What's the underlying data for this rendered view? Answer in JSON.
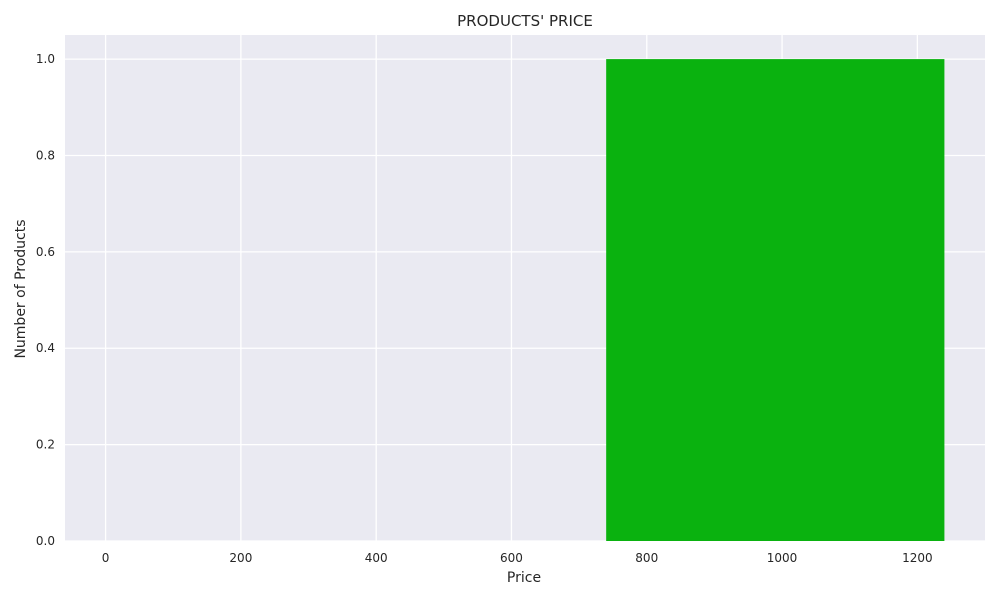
{
  "chart_data": {
    "type": "bar",
    "title": "PRODUCTS' PRICE",
    "xlabel": "Price",
    "ylabel": "Number of Products",
    "bars": [
      {
        "x_start": 740,
        "x_end": 1240,
        "value": 1.0
      }
    ],
    "xlim": [
      -60,
      1300
    ],
    "ylim": [
      0,
      1.05
    ],
    "xticks": [
      0,
      200,
      400,
      600,
      800,
      1000,
      1200
    ],
    "yticks": [
      0.0,
      0.2,
      0.4,
      0.6,
      0.8,
      1.0
    ],
    "xtick_labels": [
      "0",
      "200",
      "400",
      "600",
      "800",
      "1000",
      "1200"
    ],
    "ytick_labels": [
      "0.0",
      "0.2",
      "0.4",
      "0.6",
      "0.8",
      "1.0"
    ],
    "grid": true,
    "colors": {
      "bar": "#0ab20f",
      "plot_background": "#eaeaf2",
      "grid": "#ffffff"
    }
  }
}
